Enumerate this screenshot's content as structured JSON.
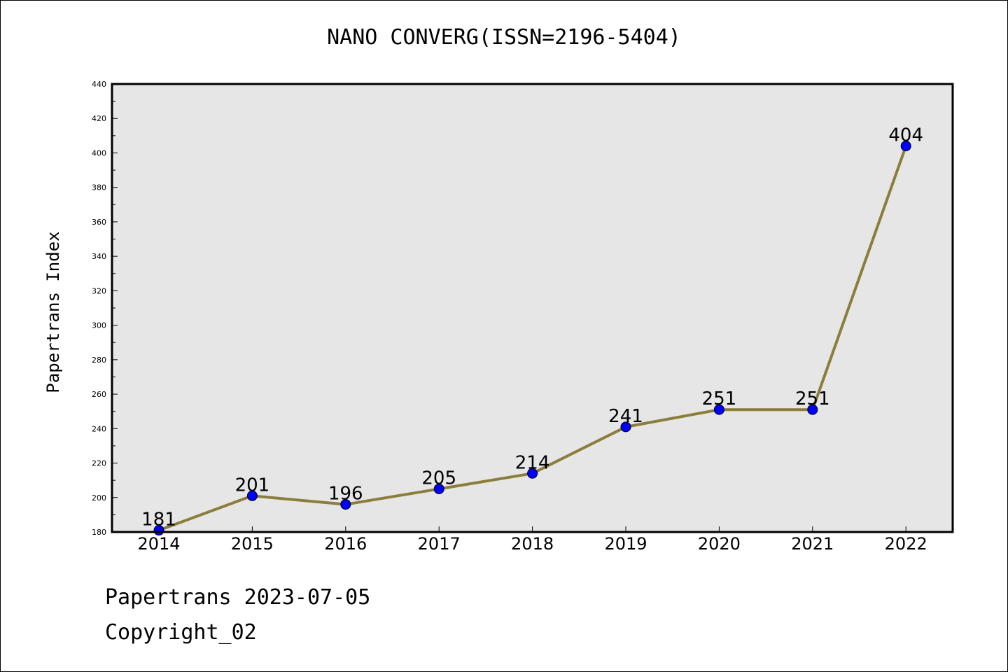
{
  "chart_data": {
    "type": "line",
    "title": "NANO CONVERG(ISSN=2196-5404)",
    "xlabel": "",
    "ylabel": "Papertrans Index",
    "categories": [
      "2014",
      "2015",
      "2016",
      "2017",
      "2018",
      "2019",
      "2020",
      "2021",
      "2022"
    ],
    "values": [
      181,
      201,
      196,
      205,
      214,
      241,
      251,
      251,
      404
    ],
    "data_labels": [
      "181",
      "201",
      "196",
      "205",
      "214",
      "241",
      "251",
      "251",
      "404"
    ],
    "ylim": [
      180,
      440
    ],
    "yticks": [
      "180",
      "200",
      "220",
      "240",
      "260",
      "280",
      "300",
      "320",
      "340",
      "360",
      "380",
      "400",
      "420",
      "440"
    ],
    "grid": false,
    "plot_background": "#e6e6e6",
    "line_color": "#8b7d3a",
    "marker_color": "#0000ff"
  },
  "footer": {
    "date_line": "Papertrans 2023-07-05",
    "copyright": "Copyright_02"
  }
}
